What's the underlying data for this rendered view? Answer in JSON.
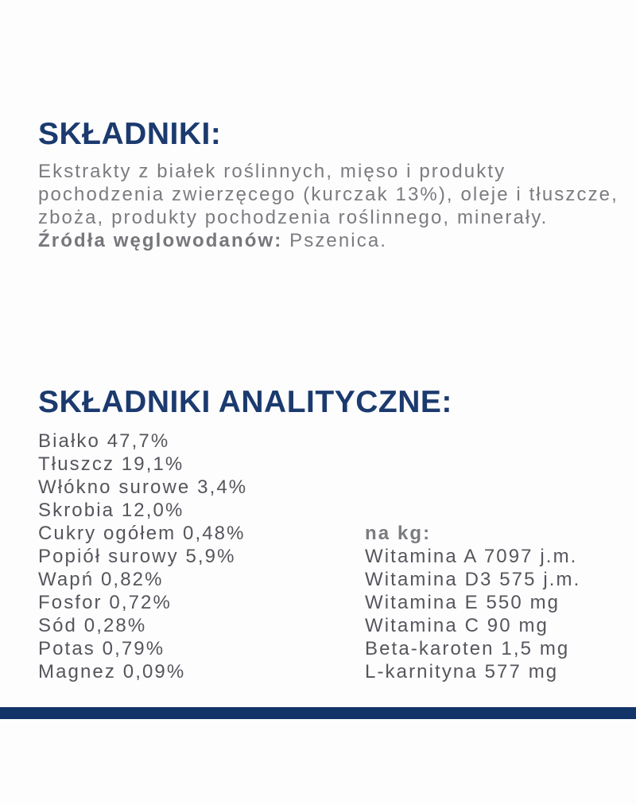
{
  "colors": {
    "heading_navy": "#1b3a6e",
    "footer_bar_navy": "#123467",
    "paragraph_gray": "#7b7c80",
    "list_gray": "#55565c",
    "background": "#fdfdfe"
  },
  "ingredients": {
    "heading": "SKŁADNIKI:",
    "body_lines": [
      "Ekstrakty z białek roślinnych, mięso i produkty",
      "pochodzenia zwierzęcego (kurczak 13%), oleje i tłuszcze,",
      "zboża, produkty pochodzenia roślinnego, minerały."
    ],
    "carb_sources_label": "Źródła węglowodanów:",
    "carb_sources_value": "Pszenica."
  },
  "analytical": {
    "heading": "SKŁADNIKI ANALITYCZNE:",
    "left_items": [
      "Białko 47,7%",
      "Tłuszcz 19,1%",
      "Włókno surowe 3,4%",
      "Skrobia 12,0%",
      "Cukry ogółem 0,48%",
      "Popiół surowy 5,9%",
      "Wapń 0,82%",
      "Fosfor 0,72%",
      "Sód 0,28%",
      "Potas 0,79%",
      "Magnez 0,09%"
    ],
    "per_kg_heading": "na kg:",
    "per_kg_items": [
      "Witamina A 7097 j.m.",
      "Witamina D3 575 j.m.",
      "Witamina E 550 mg",
      "Witamina C 90 mg",
      "Beta-karoten 1,5 mg",
      "L-karnityna 577 mg"
    ]
  }
}
